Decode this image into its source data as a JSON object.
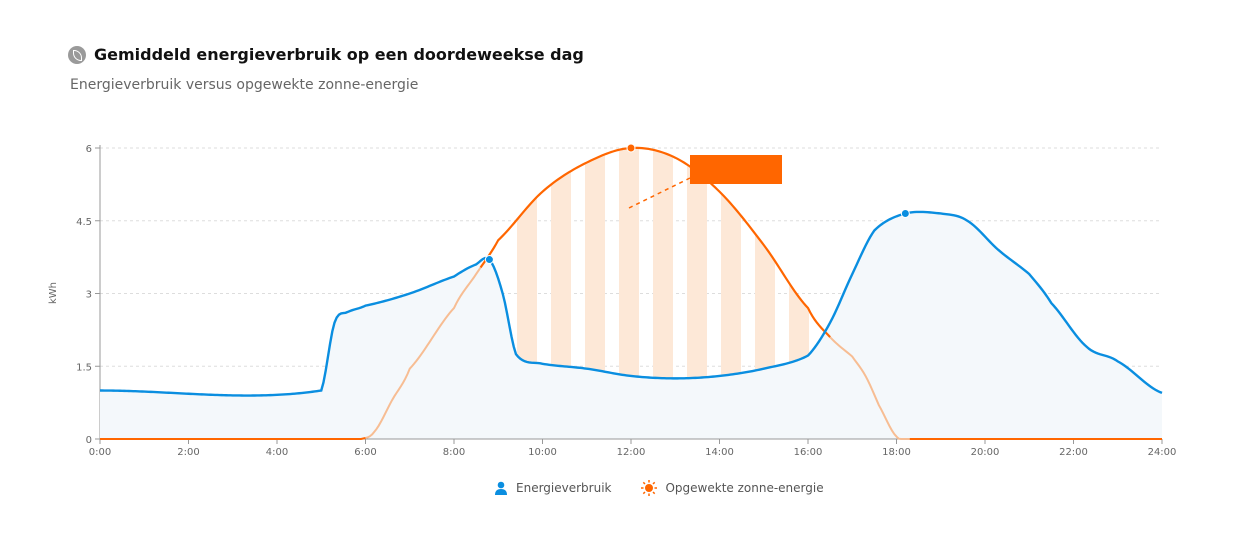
{
  "header": {
    "title": "Gemiddeld energieverbruik op een doordeweekse dag",
    "subtitle": "Energieverbruik versus opgewekte zonne-energie",
    "icon": "leaf-icon"
  },
  "chart_data": {
    "type": "line",
    "title": "Gemiddeld energieverbruik op een doordeweekse dag",
    "subtitle": "Energieverbruik versus opgewekte zonne-energie",
    "xlabel": "",
    "ylabel": "kWh",
    "xlim": [
      0,
      24
    ],
    "ylim": [
      0,
      6
    ],
    "x_ticks": [
      "0:00",
      "2:00",
      "4:00",
      "6:00",
      "8:00",
      "10:00",
      "12:00",
      "14:00",
      "16:00",
      "18:00",
      "20:00",
      "22:00",
      "24:00"
    ],
    "y_ticks": [
      "0",
      "1.5",
      "3",
      "4.5",
      "6"
    ],
    "grid": true,
    "legend_position": "bottom-center",
    "series": [
      {
        "name": "Energieverbruik",
        "color": "#0a8ee0",
        "icon": "person-icon",
        "x": [
          0,
          5,
          5.3,
          5.6,
          6,
          7,
          8,
          8.5,
          8.8,
          9.1,
          9.4,
          10,
          11,
          12,
          13,
          14,
          15,
          16,
          16.5,
          17,
          17.5,
          18.2,
          19,
          19.6,
          20.3,
          21,
          21.5,
          22.3,
          23,
          24
        ],
        "y": [
          1,
          1,
          2.4,
          2.62,
          2.75,
          3.0,
          3.35,
          3.6,
          3.7,
          3.0,
          1.75,
          1.55,
          1.45,
          1.3,
          1.25,
          1.3,
          1.45,
          1.72,
          2.4,
          3.4,
          4.3,
          4.65,
          4.65,
          4.5,
          3.9,
          3.4,
          2.8,
          1.9,
          1.6,
          0.95
        ],
        "marker": {
          "x": 8.8,
          "y": 3.7
        }
      },
      {
        "name": "Opgewekte zonne-energie",
        "color": "#ff6600",
        "icon": "sun-icon",
        "x": [
          0,
          5.9,
          6.2,
          6.6,
          7,
          8,
          8.5,
          9,
          10,
          11,
          12,
          13,
          14,
          15,
          16,
          16.5,
          17,
          17.3,
          17.6,
          18,
          18.3,
          24
        ],
        "y": [
          0,
          0,
          0.15,
          0.8,
          1.45,
          2.7,
          3.4,
          4.1,
          5.1,
          5.7,
          6.0,
          5.8,
          5.1,
          4.0,
          2.7,
          2.1,
          1.7,
          1.3,
          0.7,
          0.05,
          0,
          0
        ],
        "marker": {
          "x": 12,
          "y": 6.0
        }
      }
    ]
  }
}
